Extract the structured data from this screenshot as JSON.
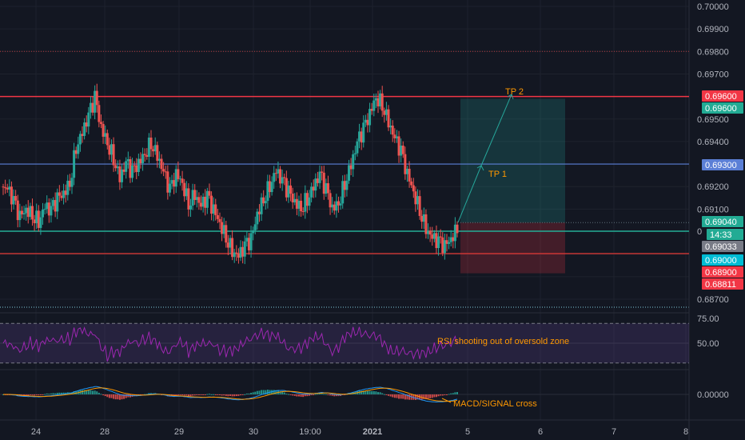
{
  "colors": {
    "background": "#131722",
    "grid": "#1e222d",
    "up": "#26a69a",
    "down": "#ef5350",
    "resistance": "#f23645",
    "tp1_line": "#5b7fd6",
    "support_cyan": "#22ab94",
    "support_red": "#e53935",
    "annotation": "#ff9800",
    "rsi_line": "#9c27b0",
    "macd_line": "#2196f3",
    "signal_line": "#ff9800"
  },
  "price_axis": {
    "ticks": [
      "0.70000",
      "0.69900",
      "0.69800",
      "0.69700",
      "0.69500",
      "0.69400",
      "0.69200",
      "0.69100",
      "0.68700"
    ],
    "tags": [
      {
        "label": "0.69600",
        "bg": "#f23645",
        "fg": "#ffffff",
        "y": 0.696
      },
      {
        "label": "0.69600",
        "bg": "#22ab94",
        "fg": "#ffffff",
        "y": 0.6957
      },
      {
        "label": "0.69300",
        "bg": "#5b7fd6",
        "fg": "#ffffff",
        "y": 0.693
      },
      {
        "label": "0.69040",
        "bg": "#22ab94",
        "fg": "#ffffff",
        "y": 0.6904
      },
      {
        "label": "14:33",
        "bg": "#22ab94",
        "fg": "#ffffff",
        "y": 0.68995
      },
      {
        "label": "0.69033",
        "bg": "#787b86",
        "fg": "#ffffff",
        "y": 0.6895
      },
      {
        "label": "0.69000",
        "bg": "#00bcd4",
        "fg": "#ffffff",
        "y": 0.689
      },
      {
        "label": "0.68900",
        "bg": "#f23645",
        "fg": "#ffffff",
        "y": 0.6885
      },
      {
        "label": "0.68811",
        "bg": "#f23645",
        "fg": "#ffffff",
        "y": 0.688
      }
    ],
    "cut_label": "0"
  },
  "rsi_axis": {
    "ticks": [
      "75.00",
      "50.00"
    ]
  },
  "macd_axis": {
    "ticks": [
      "0.00000"
    ]
  },
  "time_axis": {
    "labels": [
      "24",
      "28",
      "29",
      "30",
      "19:00",
      "2021",
      "5",
      "6",
      "7",
      "8"
    ]
  },
  "annotations": {
    "tp2": "TP 2",
    "tp1": "TP 1",
    "rsi_note": "RSI shooting out of oversold zone",
    "macd_note": "MACD/SIGNAL cross"
  },
  "chart_data": {
    "type": "candlestick",
    "symbol_timeframe": "",
    "price_levels": {
      "resistance_tp2": 0.696,
      "tp1": 0.693,
      "entry": 0.6904,
      "support": 0.69,
      "stop": 0.689
    },
    "y_range": [
      0.6865,
      0.7002
    ],
    "candle_closes": [
      0.6919,
      0.6913,
      0.6906,
      0.691,
      0.6908,
      0.6905,
      0.6911,
      0.6909,
      0.6914,
      0.6917,
      0.6922,
      0.6938,
      0.6944,
      0.6951,
      0.6959,
      0.6946,
      0.694,
      0.6933,
      0.6924,
      0.693,
      0.6926,
      0.693,
      0.6935,
      0.694,
      0.6934,
      0.6926,
      0.6918,
      0.6925,
      0.6922,
      0.6913,
      0.6917,
      0.6911,
      0.6915,
      0.6909,
      0.6904,
      0.6898,
      0.6892,
      0.6889,
      0.6893,
      0.6896,
      0.6908,
      0.6915,
      0.6921,
      0.6927,
      0.6922,
      0.6917,
      0.6913,
      0.6911,
      0.6915,
      0.692,
      0.6925,
      0.6918,
      0.691,
      0.6913,
      0.6922,
      0.693,
      0.6939,
      0.6945,
      0.6952,
      0.696,
      0.6957,
      0.6949,
      0.6941,
      0.6935,
      0.6925,
      0.6918,
      0.691,
      0.6902,
      0.6897,
      0.6895,
      0.6893,
      0.6897,
      0.6902
    ],
    "rsi_range": [
      20,
      80
    ],
    "macd_zero": 0.0
  }
}
